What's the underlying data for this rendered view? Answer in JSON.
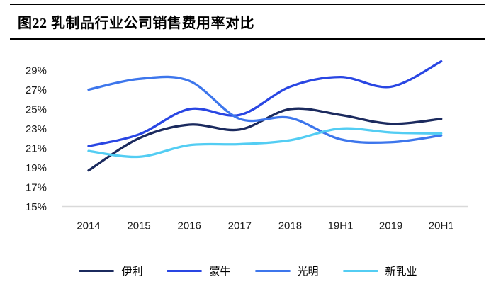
{
  "page": {
    "figure_title": "图22 乳制品行业公司销售费用率对比"
  },
  "chart_data": {
    "type": "line",
    "title": "乳制品行业公司销售费用率对比",
    "categories": [
      "2014",
      "2015",
      "2016",
      "2017",
      "2018",
      "19H1",
      "2019",
      "20H1"
    ],
    "series": [
      {
        "name": "伊利",
        "color": "#1b2a5e",
        "values": [
          18.7,
          22.0,
          23.4,
          22.9,
          25.0,
          24.4,
          23.5,
          24.0
        ]
      },
      {
        "name": "蒙牛",
        "color": "#2946e3",
        "values": [
          21.2,
          22.4,
          25.0,
          24.4,
          27.3,
          28.3,
          27.3,
          29.9
        ]
      },
      {
        "name": "光明",
        "color": "#3d76ec",
        "values": [
          27.0,
          28.1,
          27.9,
          24.0,
          24.1,
          21.9,
          21.6,
          22.3
        ]
      },
      {
        "name": "新乳业",
        "color": "#53cdf3",
        "values": [
          20.7,
          20.1,
          21.3,
          21.4,
          21.8,
          23.0,
          22.6,
          22.5
        ]
      }
    ],
    "y_ticks": [
      "29%",
      "27%",
      "25%",
      "23%",
      "21%",
      "19%",
      "17%",
      "15%"
    ],
    "ylim": [
      15,
      30
    ],
    "xlabel": "",
    "ylabel": "",
    "grid": false,
    "line_style": "smooth",
    "legend_position": "bottom",
    "axis_line_color": "#d9d9d9",
    "tick_label_color": "#1a1a1a"
  }
}
